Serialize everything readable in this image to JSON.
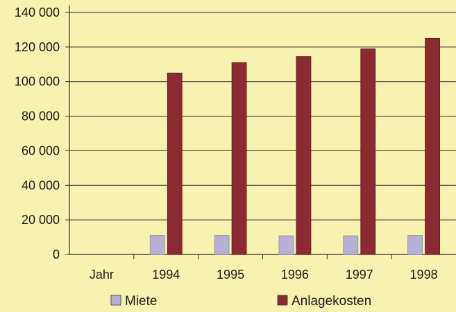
{
  "chart_data": {
    "type": "bar",
    "categories": [
      "Jahr",
      "1994",
      "1995",
      "1996",
      "1997",
      "1998"
    ],
    "series": [
      {
        "name": "Miete",
        "color": "#b5b2d6",
        "values": [
          null,
          11000,
          11000,
          10800,
          10800,
          11000
        ]
      },
      {
        "name": "Anlagekosten",
        "color": "#8b2a32",
        "values": [
          null,
          105000,
          111000,
          114500,
          119000,
          125000
        ]
      }
    ],
    "ylim": [
      0,
      140000
    ],
    "yticks": [
      0,
      20000,
      40000,
      60000,
      80000,
      100000,
      120000,
      140000
    ],
    "ytick_labels": [
      "0",
      "20 000",
      "40 000",
      "60 000",
      "80 000",
      "100 000",
      "120 000",
      "140 000"
    ],
    "grid": true,
    "legend": "bottom"
  }
}
